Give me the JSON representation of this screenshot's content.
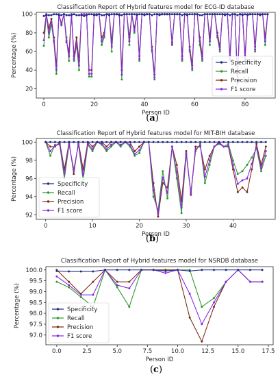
{
  "colors": {
    "Specificity": "#1f2a86",
    "Recall": "#2e9a2e",
    "Precision": "#7a2d14",
    "F1 score": "#8a2be2"
  },
  "chart_data": [
    {
      "type": "line",
      "title": "Classification Report of Hybrid features model for ECG-ID database",
      "xlabel": "Person ID",
      "ylabel": "Percentage (%)",
      "xlim": [
        -3,
        92
      ],
      "ylim": [
        10,
        102
      ],
      "xticks": [
        0,
        20,
        40,
        60,
        80
      ],
      "yticks": [
        20,
        40,
        60,
        80,
        100
      ],
      "legend_position": "lower-right",
      "caption": "(a)",
      "x": [
        0,
        1,
        2,
        3,
        4,
        5,
        6,
        7,
        8,
        9,
        10,
        11,
        12,
        13,
        14,
        15,
        16,
        17,
        18,
        19,
        20,
        21,
        22,
        23,
        24,
        25,
        26,
        27,
        28,
        29,
        30,
        31,
        32,
        33,
        34,
        35,
        36,
        37,
        38,
        39,
        40,
        41,
        42,
        43,
        44,
        45,
        46,
        47,
        48,
        49,
        50,
        51,
        52,
        53,
        54,
        55,
        56,
        57,
        58,
        59,
        60,
        61,
        62,
        63,
        64,
        65,
        66,
        67,
        68,
        69,
        70,
        71,
        72,
        73,
        74,
        75,
        76,
        77,
        78,
        79,
        80,
        81,
        82,
        83,
        84,
        85,
        86,
        87,
        88,
        89
      ],
      "series": [
        {
          "name": "Specificity",
          "values": [
            98,
            99,
            99,
            99,
            100,
            100,
            99,
            99,
            100,
            99,
            99,
            99,
            100,
            99,
            99,
            99,
            98,
            99,
            100,
            100,
            99,
            99,
            100,
            99,
            99,
            100,
            99,
            100,
            100,
            100,
            99,
            99,
            100,
            100,
            100,
            100,
            100,
            99,
            100,
            100,
            99,
            100,
            100,
            99,
            100,
            100,
            99,
            100,
            100,
            100,
            100,
            100,
            100,
            100,
            100,
            99,
            100,
            99,
            100,
            100,
            100,
            100,
            99,
            99,
            100,
            100,
            100,
            100,
            100,
            100,
            100,
            100,
            99,
            100,
            99,
            100,
            100,
            99,
            100,
            99,
            100,
            99,
            100,
            100,
            100,
            100,
            99,
            100,
            100,
            100
          ]
        },
        {
          "name": "Recall",
          "values": [
            66,
            100,
            75,
            90,
            70,
            36,
            100,
            88,
            100,
            75,
            50,
            100,
            50,
            67,
            40,
            100,
            100,
            100,
            33,
            33,
            100,
            100,
            100,
            67,
            75,
            100,
            100,
            60,
            100,
            100,
            100,
            30,
            100,
            100,
            67,
            100,
            80,
            100,
            50,
            100,
            100,
            100,
            100,
            60,
            30,
            100,
            100,
            100,
            100,
            100,
            100,
            67,
            100,
            100,
            100,
            50,
            100,
            100,
            60,
            40,
            100,
            100,
            67,
            50,
            100,
            100,
            67,
            100,
            100,
            75,
            60,
            100,
            100,
            100,
            50,
            100,
            100,
            25,
            100,
            100,
            50,
            100,
            100,
            100,
            60,
            100,
            100,
            100,
            67,
            100
          ]
        },
        {
          "name": "Precision",
          "values": [
            80,
            100,
            85,
            95,
            75,
            45,
            100,
            90,
            100,
            70,
            60,
            100,
            55,
            75,
            50,
            100,
            100,
            100,
            40,
            40,
            100,
            100,
            100,
            75,
            80,
            100,
            100,
            70,
            100,
            100,
            100,
            40,
            100,
            100,
            75,
            100,
            85,
            100,
            55,
            100,
            100,
            100,
            100,
            65,
            35,
            100,
            100,
            100,
            100,
            100,
            100,
            70,
            100,
            100,
            100,
            55,
            100,
            100,
            65,
            45,
            100,
            100,
            75,
            55,
            100,
            100,
            75,
            100,
            100,
            80,
            65,
            100,
            100,
            100,
            55,
            100,
            100,
            30,
            100,
            100,
            55,
            100,
            100,
            100,
            65,
            100,
            100,
            100,
            75,
            100
          ]
        },
        {
          "name": "F1 score",
          "values": [
            72,
            100,
            80,
            92,
            72,
            40,
            100,
            89,
            100,
            72,
            55,
            100,
            52,
            70,
            45,
            100,
            100,
            100,
            36,
            36,
            100,
            100,
            100,
            71,
            77,
            100,
            100,
            65,
            100,
            100,
            100,
            35,
            100,
            100,
            71,
            100,
            82,
            100,
            52,
            100,
            100,
            100,
            100,
            62,
            32,
            100,
            100,
            100,
            100,
            100,
            100,
            68,
            100,
            100,
            100,
            52,
            100,
            100,
            62,
            42,
            100,
            100,
            71,
            52,
            100,
            100,
            71,
            100,
            100,
            77,
            62,
            100,
            100,
            100,
            52,
            100,
            100,
            27,
            100,
            100,
            52,
            100,
            100,
            100,
            62,
            100,
            100,
            100,
            71,
            100
          ]
        }
      ]
    },
    {
      "type": "line",
      "title": "Classification Report of Hybrid features model for MIT-BIH database",
      "xlabel": "Person ID",
      "ylabel": "Percentage (%)",
      "xlim": [
        -2,
        49
      ],
      "ylim": [
        91.5,
        100.4
      ],
      "xticks": [
        0,
        10,
        20,
        30,
        40
      ],
      "yticks": [
        92,
        94,
        96,
        98,
        100
      ],
      "legend_position": "lower-left",
      "caption": "(b)",
      "x": [
        0,
        1,
        2,
        3,
        4,
        5,
        6,
        7,
        8,
        9,
        10,
        11,
        12,
        13,
        14,
        15,
        16,
        17,
        18,
        19,
        20,
        21,
        22,
        23,
        24,
        25,
        26,
        27,
        28,
        29,
        30,
        31,
        32,
        33,
        34,
        35,
        36,
        37,
        38,
        39,
        40,
        41,
        42,
        43,
        44,
        45,
        46,
        47
      ],
      "series": [
        {
          "name": "Specificity",
          "values": [
            100,
            100,
            100,
            100,
            100,
            100,
            100,
            100,
            100,
            100,
            100,
            100,
            100,
            100,
            100,
            100,
            100,
            100,
            100,
            100,
            100,
            100,
            100,
            100,
            100,
            100,
            100,
            100,
            100,
            100,
            100,
            100,
            100,
            100,
            100,
            100,
            100,
            100,
            100,
            100,
            100,
            100,
            100,
            100,
            100,
            100,
            100,
            100
          ]
        },
        {
          "name": "Recall",
          "values": [
            100,
            98.5,
            99.7,
            99.7,
            96,
            99.7,
            97,
            99.7,
            95.8,
            99.7,
            99,
            100,
            99.7,
            99,
            99.5,
            100,
            99.5,
            100,
            99.5,
            98.5,
            98.8,
            100,
            100,
            94,
            92.5,
            96.8,
            93.8,
            99.5,
            96,
            92.2,
            98.6,
            94.5,
            99,
            99.8,
            95.5,
            97.5,
            99.5,
            99.8,
            99.5,
            99.8,
            98,
            96.5,
            96.8,
            97.5,
            98.3,
            99.3,
            96.8,
            98.5
          ]
        },
        {
          "name": "Precision",
          "values": [
            100,
            99.5,
            99.5,
            100,
            97,
            100,
            96.5,
            100,
            97,
            100,
            99.5,
            100,
            100,
            99.5,
            100,
            100,
            100,
            100,
            100,
            99,
            99.5,
            100,
            100,
            95.5,
            91.8,
            95.5,
            95,
            99.5,
            97.5,
            93.5,
            99,
            94.2,
            99.5,
            99.5,
            97,
            98.5,
            99.5,
            100,
            99.5,
            99.5,
            97,
            94.5,
            95,
            94.5,
            97,
            99.8,
            97.5,
            99.5
          ]
        },
        {
          "name": "F1 score",
          "values": [
            100,
            99,
            99.6,
            99.8,
            96.5,
            99.8,
            96.8,
            99.8,
            96.4,
            99.8,
            99.2,
            100,
            99.8,
            99.2,
            99.7,
            100,
            99.7,
            100,
            99.7,
            98.7,
            99.1,
            100,
            100,
            94.7,
            92.1,
            96.1,
            94.4,
            99.5,
            96.7,
            92.8,
            98.8,
            94.3,
            99.2,
            99.6,
            96.2,
            98,
            99.5,
            99.9,
            99.5,
            99.6,
            97.5,
            95.4,
            95.8,
            96,
            97.6,
            99.5,
            97.1,
            99
          ]
        }
      ]
    },
    {
      "type": "line",
      "title": "Classification Report of Hybrid features model for NSRDB database",
      "xlabel": "Person ID",
      "ylabel": "Percentage (%)",
      "xlim": [
        -0.9,
        17.9
      ],
      "ylim": [
        96.55,
        100.15
      ],
      "xticks": [
        0.0,
        2.5,
        5.0,
        7.5,
        10.0,
        12.5,
        15.0,
        17.5
      ],
      "xtick_labels": [
        "0.0",
        "2.5",
        "5.0",
        "7.5",
        "10.0",
        "12.5",
        "15.0",
        "17.5"
      ],
      "yticks": [
        97.0,
        97.5,
        98.0,
        98.5,
        99.0,
        99.5,
        100.0
      ],
      "ytick_labels": [
        "97.0",
        "97.5",
        "98.0",
        "98.5",
        "99.0",
        "99.5",
        "100.0"
      ],
      "legend_position": "lower-left",
      "caption": "(c)",
      "x": [
        0,
        1,
        2,
        3,
        4,
        5,
        6,
        7,
        8,
        9,
        10,
        11,
        12,
        13,
        14,
        15,
        16,
        17
      ],
      "series": [
        {
          "name": "Specificity",
          "values": [
            99.95,
            99.93,
            99.93,
            99.93,
            100,
            100,
            100,
            100,
            100,
            99.95,
            100,
            99.95,
            100,
            100,
            100,
            100,
            100,
            100
          ]
        },
        {
          "name": "Recall",
          "values": [
            99.45,
            99.2,
            98.75,
            98.3,
            100,
            99.2,
            98.3,
            100,
            100,
            100,
            100,
            100,
            98.3,
            98.7,
            99.45,
            100,
            99.45,
            99.45
          ]
        },
        {
          "name": "Precision",
          "values": [
            100,
            99.45,
            98.9,
            99.45,
            100,
            99.45,
            99.45,
            100,
            100,
            100,
            100,
            97.8,
            96.7,
            98.3,
            99.45,
            100,
            99.45,
            99.45
          ]
        },
        {
          "name": "F1 score",
          "values": [
            99.7,
            99.3,
            98.85,
            98.85,
            100,
            99.3,
            99.15,
            100,
            100,
            99.85,
            100,
            98.9,
            97.5,
            98.5,
            99.45,
            100,
            99.45,
            99.45
          ]
        }
      ]
    }
  ]
}
